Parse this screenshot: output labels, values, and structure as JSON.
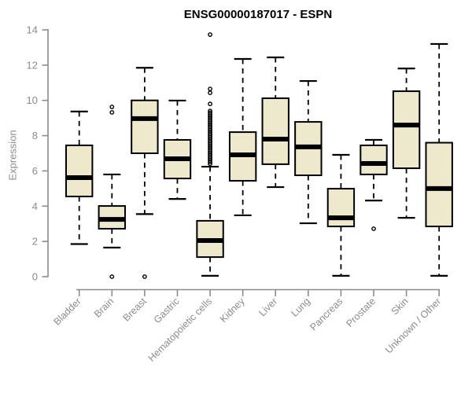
{
  "title": "ENSG00000187017 - ESPN",
  "colors": {
    "background": "#FFFFFF",
    "box_fill": "#EEE8CD",
    "box_border": "#000000",
    "median": "#000000",
    "whisker": "#000000",
    "outlier": "#000000",
    "axis": "#8C8C8C",
    "tick_text": "#8C8C8C",
    "title_text": "#000000"
  },
  "chart_data": {
    "type": "boxplot",
    "title": "ENSG00000187017 - ESPN",
    "xlabel": "",
    "ylabel": "Expression",
    "ylim": [
      0,
      14
    ],
    "yticks": [
      0,
      2,
      4,
      6,
      8,
      10,
      12,
      14
    ],
    "grid": false,
    "legend": null,
    "categories": [
      "Bladder",
      "Brain",
      "Breast",
      "Gastric",
      "Hematopoietic cells",
      "Kidney",
      "Liver",
      "Lung",
      "Pancreas",
      "Prostate",
      "Skin",
      "Unknown / Other"
    ],
    "boxes": [
      {
        "category": "Bladder",
        "whisker_low": 1.85,
        "q1": 4.55,
        "median": 5.62,
        "q3": 7.45,
        "whisker_high": 9.37,
        "outliers": []
      },
      {
        "category": "Brain",
        "whisker_low": 1.65,
        "q1": 2.72,
        "median": 3.25,
        "q3": 4.01,
        "whisker_high": 5.8,
        "outliers": [
          9.63,
          9.32,
          0.0
        ]
      },
      {
        "category": "Breast",
        "whisker_low": 3.55,
        "q1": 7.0,
        "median": 8.97,
        "q3": 10.0,
        "whisker_high": 11.85,
        "outliers": [
          0.0
        ]
      },
      {
        "category": "Gastric",
        "whisker_low": 4.41,
        "q1": 5.57,
        "median": 6.69,
        "q3": 7.76,
        "whisker_high": 9.99,
        "outliers": []
      },
      {
        "category": "Hematopoietic cells",
        "whisker_low": 0.05,
        "q1": 1.11,
        "median": 2.05,
        "q3": 3.17,
        "whisker_high": 6.24,
        "outliers": [
          13.73,
          10.65,
          10.43,
          9.8,
          9.4,
          9.3,
          9.2,
          9.1,
          9.0,
          8.9,
          8.8,
          8.7,
          8.6,
          8.5,
          8.4,
          8.3,
          8.2,
          8.1,
          8.0,
          7.9,
          7.8,
          7.7,
          7.6,
          7.5,
          7.4,
          7.3,
          7.2,
          7.1,
          7.0,
          6.9,
          6.8,
          6.7,
          6.6,
          6.5,
          6.4
        ]
      },
      {
        "category": "Kidney",
        "whisker_low": 3.48,
        "q1": 5.44,
        "median": 6.91,
        "q3": 8.2,
        "whisker_high": 12.35,
        "outliers": []
      },
      {
        "category": "Liver",
        "whisker_low": 5.08,
        "q1": 6.38,
        "median": 7.8,
        "q3": 10.12,
        "whisker_high": 12.44,
        "outliers": []
      },
      {
        "category": "Lung",
        "whisker_low": 3.03,
        "q1": 5.75,
        "median": 7.36,
        "q3": 8.78,
        "whisker_high": 11.1,
        "outliers": []
      },
      {
        "category": "Pancreas",
        "whisker_low": 0.05,
        "q1": 2.85,
        "median": 3.34,
        "q3": 4.99,
        "whisker_high": 6.91,
        "outliers": []
      },
      {
        "category": "Prostate",
        "whisker_low": 4.32,
        "q1": 5.8,
        "median": 6.42,
        "q3": 7.45,
        "whisker_high": 7.76,
        "outliers": [
          2.72
        ]
      },
      {
        "category": "Skin",
        "whisker_low": 3.34,
        "q1": 6.15,
        "median": 8.6,
        "q3": 10.52,
        "whisker_high": 11.81,
        "outliers": []
      },
      {
        "category": "Unknown / Other",
        "whisker_low": 0.05,
        "q1": 2.85,
        "median": 5.0,
        "q3": 7.6,
        "whisker_high": 13.2,
        "outliers": []
      }
    ]
  }
}
